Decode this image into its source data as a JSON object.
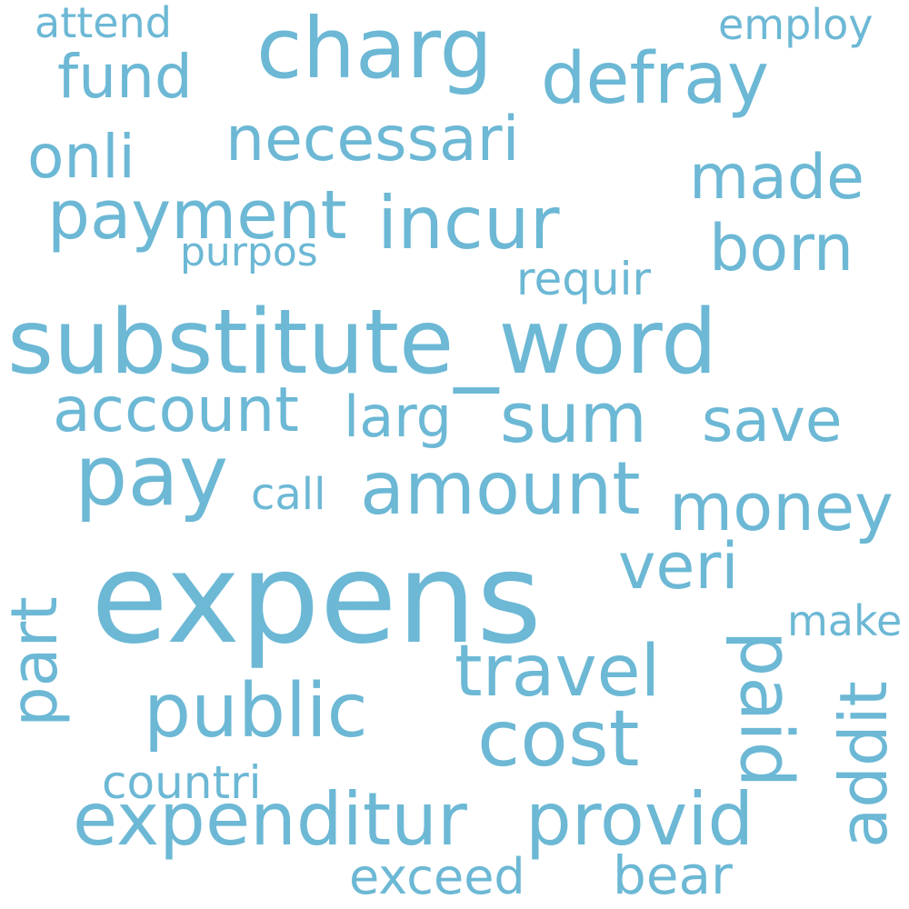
{
  "color": "#6cb8d5",
  "words": [
    "substitute_word",
    "expens",
    "charg",
    "defray",
    "fund",
    "attend",
    "employ",
    "necessari",
    "onli",
    "made",
    "payment",
    "incur",
    "born",
    "purpos",
    "requir",
    "account",
    "larg",
    "sum",
    "save",
    "pay",
    "amount",
    "call",
    "money",
    "veri",
    "part",
    "make",
    "paid",
    "travel",
    "addit",
    "public",
    "cost",
    "countri",
    "expenditur",
    "provid",
    "exceed",
    "bear"
  ]
}
